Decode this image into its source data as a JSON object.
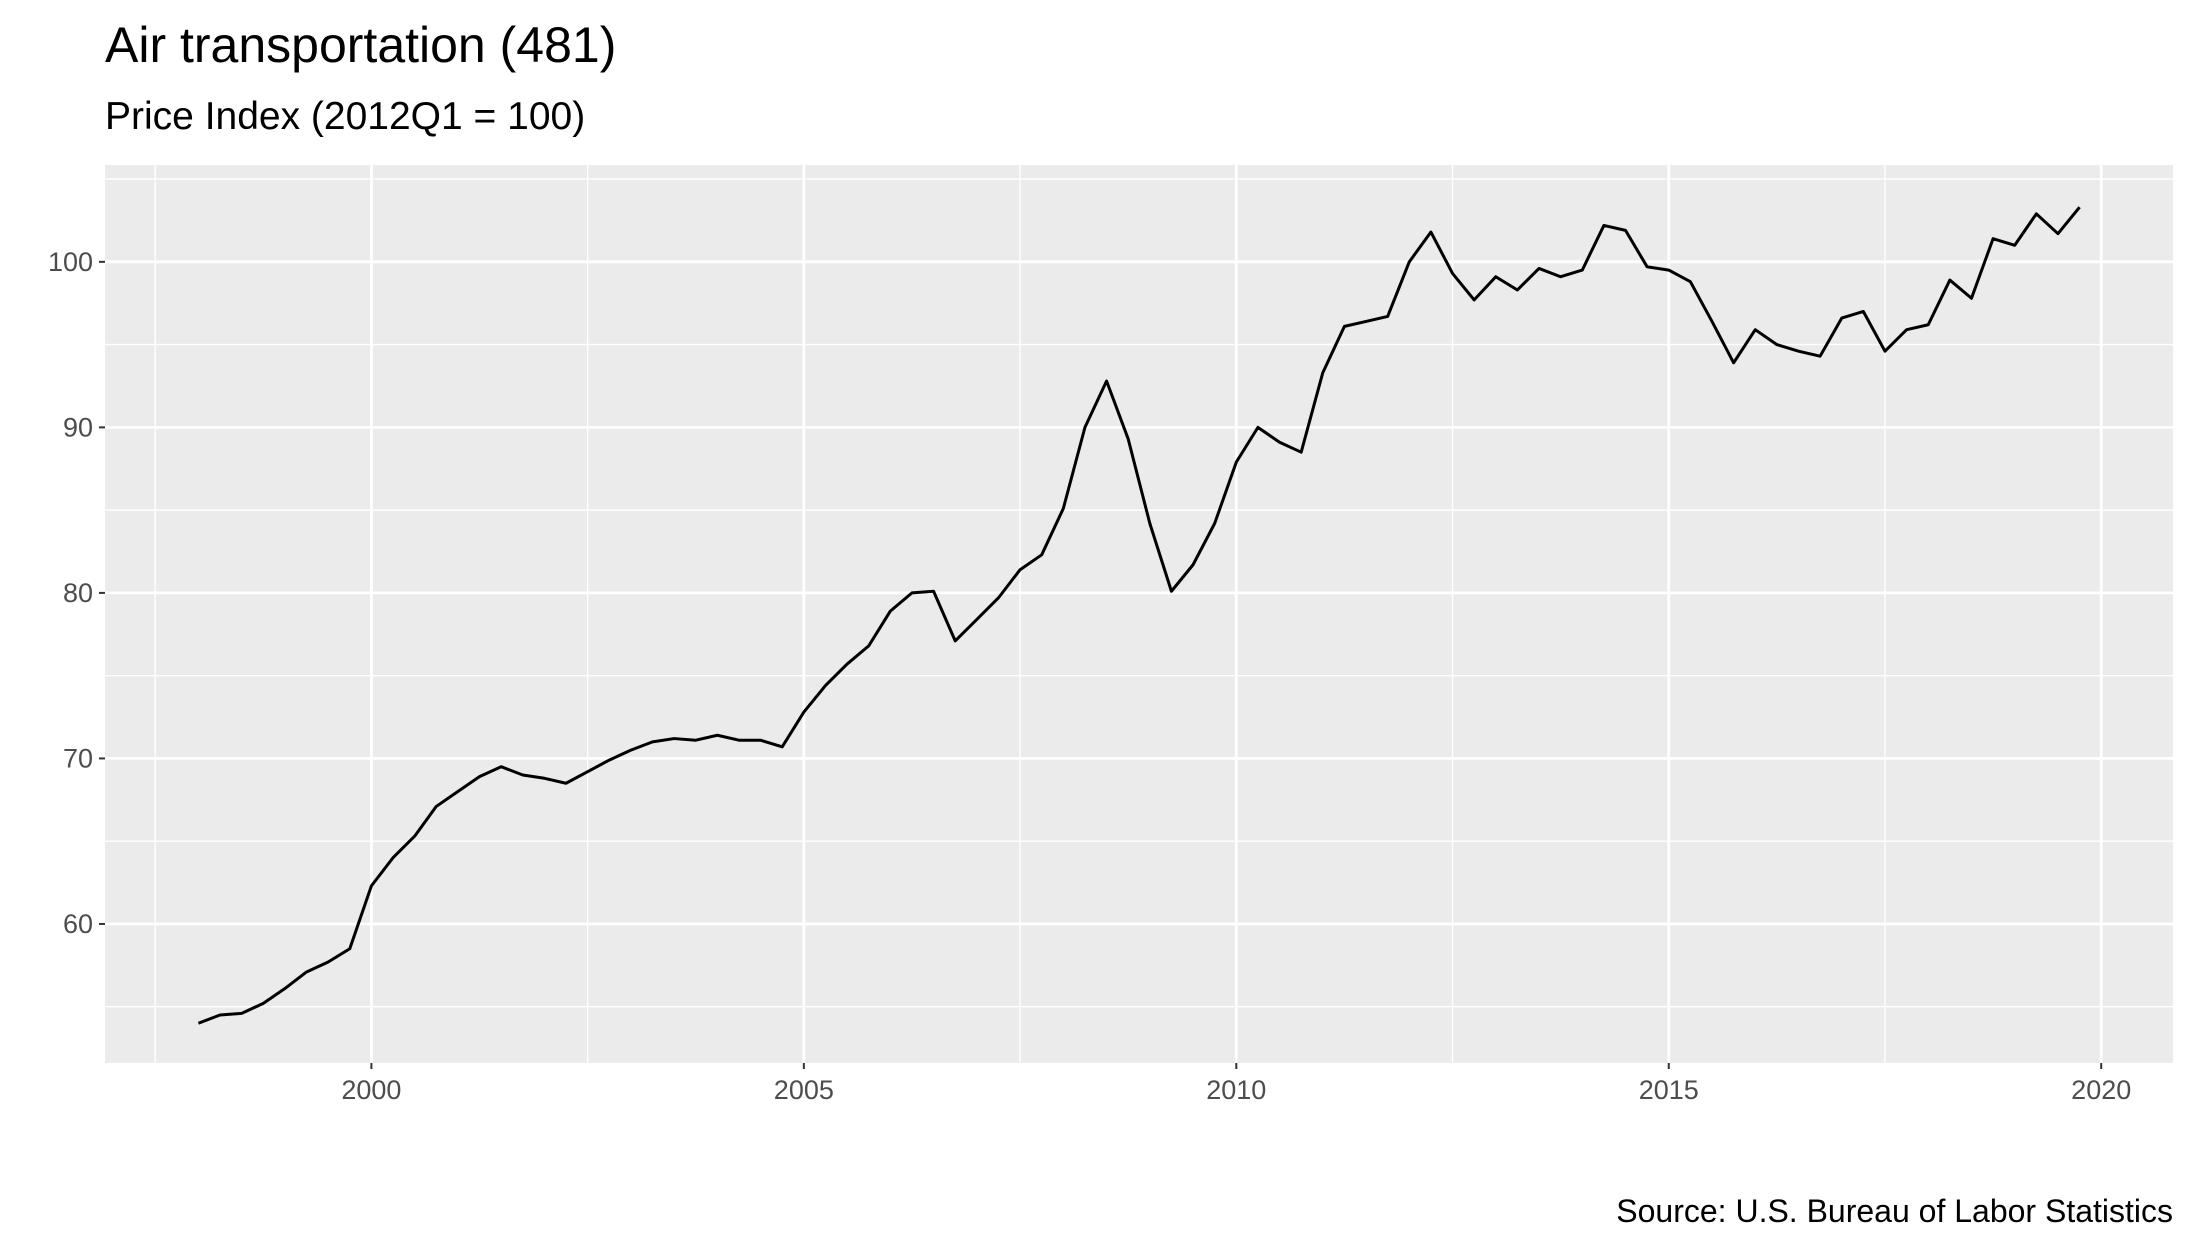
{
  "chart_data": {
    "type": "line",
    "title": "Air transportation (481)",
    "subtitle": "Price Index (2012Q1 = 100)",
    "caption": "Source: U.S. Bureau of Labor Statistics",
    "x": [
      1998,
      1998.25,
      1998.5,
      1998.75,
      1999,
      1999.25,
      1999.5,
      1999.75,
      2000,
      2000.25,
      2000.5,
      2000.75,
      2001,
      2001.25,
      2001.5,
      2001.75,
      2002,
      2002.25,
      2002.5,
      2002.75,
      2003,
      2003.25,
      2003.5,
      2003.75,
      2004,
      2004.25,
      2004.5,
      2004.75,
      2005,
      2005.25,
      2005.5,
      2005.75,
      2006,
      2006.25,
      2006.5,
      2006.75,
      2007,
      2007.25,
      2007.5,
      2007.75,
      2008,
      2008.25,
      2008.5,
      2008.75,
      2009,
      2009.25,
      2009.5,
      2009.75,
      2010,
      2010.25,
      2010.5,
      2010.75,
      2011,
      2011.25,
      2011.5,
      2011.75,
      2012,
      2012.25,
      2012.5,
      2012.75,
      2013,
      2013.25,
      2013.5,
      2013.75,
      2014,
      2014.25,
      2014.5,
      2014.75,
      2015,
      2015.25,
      2015.5,
      2015.75,
      2016,
      2016.25,
      2016.5,
      2016.75,
      2017,
      2017.25,
      2017.5,
      2017.75,
      2018,
      2018.25,
      2018.5,
      2018.75,
      2019,
      2019.25,
      2019.5,
      2019.75
    ],
    "values": [
      54.0,
      54.5,
      54.6,
      55.2,
      56.1,
      57.1,
      57.7,
      58.5,
      62.3,
      64.0,
      65.3,
      67.1,
      68.0,
      68.9,
      69.5,
      69.0,
      68.8,
      68.5,
      69.2,
      69.9,
      70.5,
      71.0,
      71.2,
      71.1,
      71.4,
      71.1,
      71.1,
      70.7,
      72.8,
      74.4,
      75.7,
      76.8,
      78.9,
      80.0,
      80.1,
      77.1,
      78.4,
      79.7,
      81.4,
      82.3,
      85.1,
      90.0,
      92.8,
      89.3,
      84.2,
      80.1,
      81.7,
      84.2,
      87.9,
      90.0,
      89.1,
      88.5,
      93.3,
      96.1,
      96.4,
      96.7,
      100.0,
      101.8,
      99.3,
      97.7,
      99.1,
      98.3,
      99.6,
      99.1,
      99.5,
      102.2,
      101.9,
      99.7,
      99.5,
      98.8,
      96.4,
      93.9,
      95.9,
      95.0,
      94.6,
      94.3,
      96.6,
      97.0,
      94.6,
      95.9,
      96.2,
      98.9,
      97.8,
      101.4,
      101.0,
      102.9,
      101.7,
      103.3
    ],
    "color": "#000000",
    "xlim": [
      1996.92,
      2020.83
    ],
    "xticks": [
      2000,
      2005,
      2010,
      2015,
      2020
    ],
    "ylim": [
      51.6,
      105.85
    ],
    "yticks": [
      60,
      70,
      80,
      90,
      100
    ],
    "grid": true
  }
}
